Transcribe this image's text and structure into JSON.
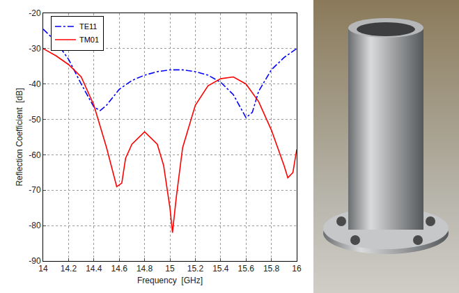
{
  "chart_data": {
    "type": "line",
    "x_label": "Frequency  [GHz]",
    "y_label": "Reflection Coefficient  [dB]",
    "xlim": [
      14,
      16
    ],
    "xticks": [
      14,
      14.2,
      14.4,
      14.6,
      14.8,
      15,
      15.2,
      15.4,
      15.6,
      15.8,
      16
    ],
    "ylim": [
      -90,
      -20
    ],
    "yticks": [
      -90,
      -80,
      -70,
      -60,
      -50,
      -40,
      -30,
      -20
    ],
    "grid": true,
    "legend": "upper left",
    "series": [
      {
        "name": "TE11",
        "color": "#0000ff",
        "line_style": "dashdot",
        "x": [
          14,
          14.1,
          14.2,
          14.3,
          14.4,
          14.45,
          14.5,
          14.6,
          14.7,
          14.8,
          14.9,
          15,
          15.1,
          15.2,
          15.3,
          15.4,
          15.5,
          15.6,
          15.65,
          15.7,
          15.8,
          15.9,
          16
        ],
        "values": [
          -24.5,
          -28,
          -33,
          -40,
          -46.5,
          -47.5,
          -46,
          -41.5,
          -39,
          -37.5,
          -36.5,
          -36,
          -36,
          -36.5,
          -37.5,
          -39.5,
          -43,
          -49.5,
          -48,
          -42,
          -36,
          -32.5,
          -30
        ]
      },
      {
        "name": "TM01",
        "color": "#ff0000",
        "line_style": "solid",
        "x": [
          14,
          14.1,
          14.2,
          14.3,
          14.4,
          14.5,
          14.58,
          14.62,
          14.65,
          14.7,
          14.8,
          14.9,
          14.95,
          15,
          15.02,
          15.05,
          15.1,
          15.2,
          15.3,
          15.4,
          15.5,
          15.6,
          15.7,
          15.8,
          15.9,
          15.93,
          15.97,
          16
        ],
        "values": [
          -30,
          -32,
          -34.5,
          -38,
          -46,
          -58,
          -69,
          -68,
          -61,
          -57,
          -53.5,
          -57,
          -63,
          -75,
          -82,
          -72,
          -58,
          -46,
          -40.5,
          -38.5,
          -38,
          -40,
          -45,
          -53,
          -63,
          -66.5,
          -65,
          -58.5
        ]
      }
    ]
  }
}
